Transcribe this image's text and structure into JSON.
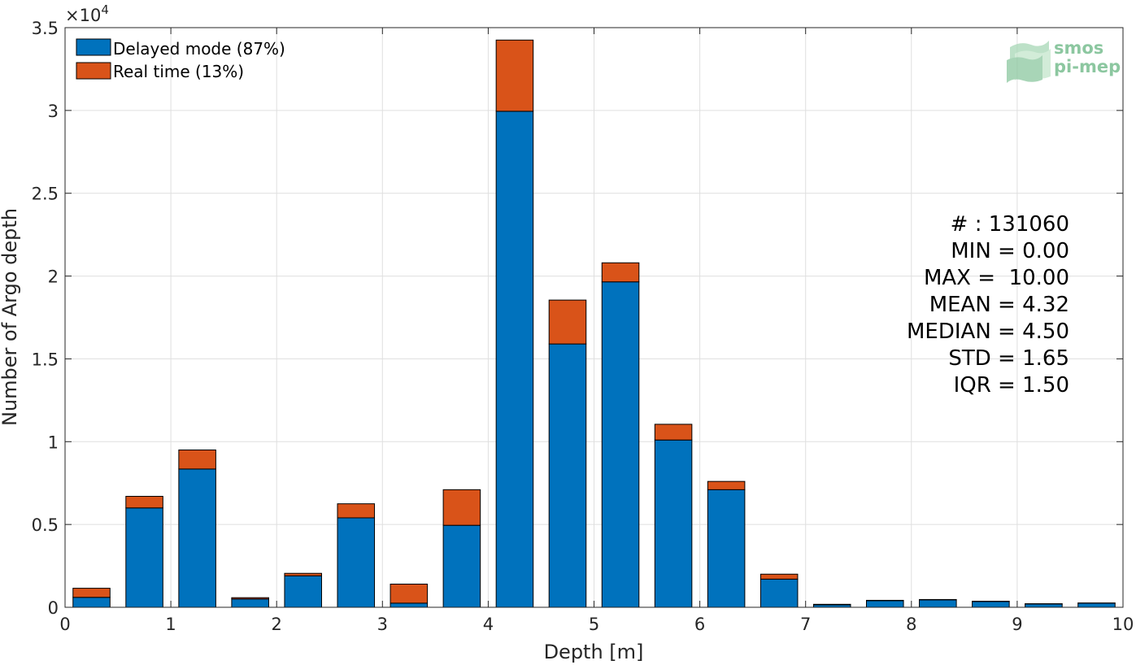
{
  "chart_data": {
    "type": "bar",
    "stacked": true,
    "xlabel": "Depth [m]",
    "ylabel": "Number of Argo depth",
    "xlim": [
      0,
      10
    ],
    "ylim": [
      0,
      35000
    ],
    "y_exponent_label": "×10",
    "y_exponent_power": "4",
    "x_ticks": [
      0,
      1,
      2,
      3,
      4,
      5,
      6,
      7,
      8,
      9,
      10
    ],
    "x_tick_labels": [
      "0",
      "1",
      "2",
      "3",
      "4",
      "5",
      "6",
      "7",
      "8",
      "9",
      "10"
    ],
    "y_ticks": [
      0,
      5000,
      10000,
      15000,
      20000,
      25000,
      30000,
      35000
    ],
    "y_tick_labels": [
      "0",
      "0.5",
      "1",
      "1.5",
      "2",
      "2.5",
      "3",
      "3.5"
    ],
    "grid": true,
    "bar_width": 0.35,
    "x": [
      0.25,
      0.75,
      1.25,
      1.75,
      2.25,
      2.75,
      3.25,
      3.75,
      4.25,
      4.75,
      5.25,
      5.75,
      6.25,
      6.75,
      7.25,
      7.75,
      8.25,
      8.75,
      9.25,
      9.75
    ],
    "series": [
      {
        "name": "Delayed mode (87%)",
        "color": "#0072bd",
        "values": [
          600,
          6000,
          8350,
          500,
          1900,
          5400,
          250,
          4950,
          29950,
          15900,
          19650,
          10100,
          7100,
          1700,
          150,
          400,
          450,
          350,
          200,
          250
        ]
      },
      {
        "name": "Real time (13%)",
        "color": "#d95319",
        "values": [
          550,
          700,
          1150,
          80,
          150,
          850,
          1150,
          2150,
          4300,
          2650,
          1150,
          950,
          500,
          300,
          30,
          20,
          20,
          15,
          15,
          10
        ]
      }
    ],
    "legend_position": "top-left",
    "annotations": [
      "# : 131060",
      "MIN = 0.00",
      "MAX =  10.00",
      "MEAN = 4.32",
      "MEDIAN = 4.50",
      "STD = 1.65",
      "IQR = 1.50"
    ]
  },
  "logo": {
    "line1": "smos",
    "line2": "pi-mep",
    "color": "#8cc7a0"
  }
}
